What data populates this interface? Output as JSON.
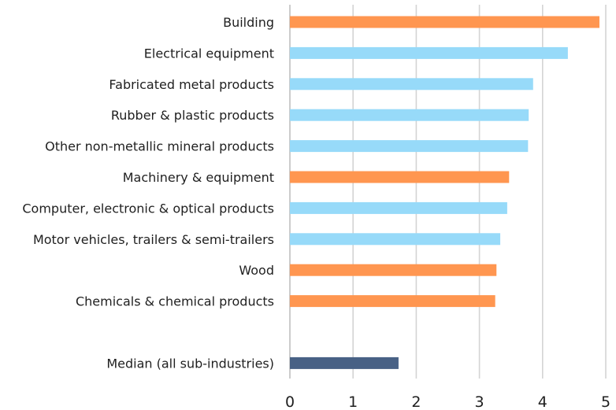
{
  "chart_data": {
    "type": "bar",
    "orientation": "horizontal",
    "title": "",
    "xlabel": "",
    "ylabel": "",
    "xlim": [
      0,
      5
    ],
    "xticks": [
      "0",
      "1",
      "2",
      "3",
      "4",
      "5"
    ],
    "grid": true,
    "legend": "none",
    "colors": {
      "orange": "#FF9650",
      "light_blue": "#97DAF9",
      "median": "#486185"
    },
    "categories": [
      "Building",
      "Electrical equipment",
      "Fabricated metal products",
      "Rubber & plastic products",
      "Other non-metallic mineral products",
      "Machinery & equipment",
      "Computer, electronic & optical products",
      "Motor vehicles, trailers & semi-trailers",
      "Wood",
      "Chemicals & chemical products",
      "",
      "Median (all sub-industries)"
    ],
    "values": [
      4.9,
      4.4,
      3.85,
      3.78,
      3.77,
      3.47,
      3.44,
      3.33,
      3.27,
      3.25,
      null,
      1.72
    ],
    "bar_colors": [
      "orange",
      "light_blue",
      "light_blue",
      "light_blue",
      "light_blue",
      "orange",
      "light_blue",
      "light_blue",
      "orange",
      "orange",
      null,
      "median"
    ]
  }
}
